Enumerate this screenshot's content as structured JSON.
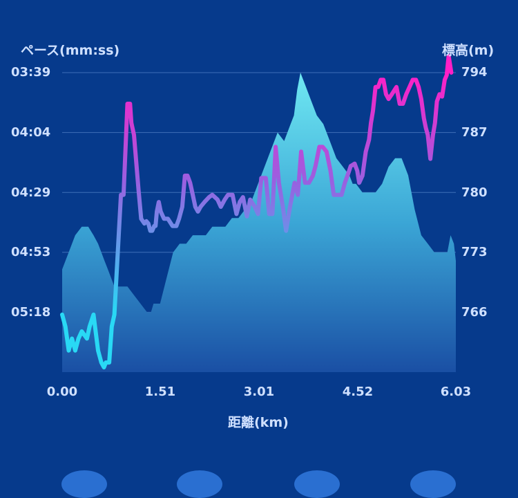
{
  "chart_data": {
    "type": "line",
    "xlabel": "距離(km)",
    "ylabel_left": "ペース(mm:ss)",
    "ylabel_right": "標高(m)",
    "x_ticks": [
      "0.00",
      "1.51",
      "3.01",
      "4.52",
      "6.03"
    ],
    "pace_ticks": [
      "03:39",
      "04:04",
      "04:29",
      "04:53",
      "05:18"
    ],
    "elevation_ticks": [
      "794",
      "787",
      "780",
      "773",
      "766"
    ],
    "x_range": [
      0,
      6.03
    ],
    "pace_range_seconds": [
      219,
      344
    ],
    "elevation_range": [
      759,
      794
    ],
    "grid": true,
    "series": [
      {
        "name": "ペース",
        "kind": "line",
        "axis": "left",
        "colors": [
          "#29d9f5",
          "#9a5fe0",
          "#ff1fc6"
        ],
        "x": [
          0.0,
          0.05,
          0.1,
          0.15,
          0.2,
          0.25,
          0.3,
          0.38,
          0.42,
          0.48,
          0.55,
          0.6,
          0.64,
          0.67,
          0.72,
          0.76,
          0.8,
          0.86,
          0.9,
          0.94,
          1.0,
          1.04,
          1.06,
          1.1,
          1.17,
          1.21,
          1.26,
          1.29,
          1.32,
          1.35,
          1.38,
          1.41,
          1.43,
          1.45,
          1.48,
          1.51,
          1.56,
          1.62,
          1.69,
          1.75,
          1.79,
          1.84,
          1.88,
          1.92,
          1.96,
          2.0,
          2.04,
          2.08,
          2.12,
          2.18,
          2.25,
          2.3,
          2.38,
          2.43,
          2.49,
          2.54,
          2.61,
          2.67,
          2.72,
          2.77,
          2.83,
          2.88,
          2.95,
          3.0,
          3.05,
          3.12,
          3.17,
          3.22,
          3.27,
          3.32,
          3.38,
          3.43,
          3.49,
          3.56,
          3.61,
          3.66,
          3.72,
          3.78,
          3.84,
          3.88,
          3.94,
          3.99,
          4.05,
          4.11,
          4.16,
          4.22,
          4.28,
          4.33,
          4.37,
          4.42,
          4.48,
          4.52,
          4.55,
          4.6,
          4.65,
          4.7,
          4.73,
          4.76,
          4.8,
          4.84,
          4.88,
          4.92,
          4.96,
          5.0,
          5.05,
          5.12,
          5.17,
          5.22,
          5.27,
          5.32,
          5.37,
          5.42,
          5.46,
          5.5,
          5.54,
          5.57,
          5.6,
          5.64,
          5.68,
          5.71,
          5.74,
          5.78,
          5.82,
          5.86,
          5.89,
          5.92,
          5.96,
          6.0,
          6.03
        ],
        "y_pace_seconds": [
          320,
          325,
          335,
          330,
          335,
          330,
          327,
          330,
          325,
          320,
          335,
          340,
          342,
          340,
          340,
          325,
          320,
          290,
          270,
          270,
          232,
          232,
          240,
          245,
          268,
          280,
          282,
          281,
          282,
          285,
          285,
          283,
          283,
          277,
          273,
          277,
          280,
          280,
          283,
          283,
          280,
          275,
          262,
          262,
          265,
          270,
          275,
          277,
          275,
          273,
          271,
          270,
          272,
          275,
          272,
          270,
          270,
          278,
          273,
          271,
          279,
          272,
          275,
          278,
          263,
          263,
          278,
          278,
          250,
          265,
          275,
          285,
          275,
          265,
          270,
          252,
          265,
          265,
          262,
          258,
          250,
          250,
          252,
          260,
          270,
          270,
          270,
          265,
          262,
          258,
          257,
          260,
          265,
          262,
          252,
          247,
          240,
          235,
          225,
          225,
          222,
          222,
          228,
          230,
          228,
          225,
          232,
          232,
          228,
          225,
          222,
          222,
          225,
          230,
          238,
          242,
          245,
          255,
          245,
          240,
          231,
          228,
          229,
          222,
          220,
          212,
          219
        ]
      },
      {
        "name": "標高",
        "kind": "area",
        "axis": "right",
        "colors": [
          "#6fe8f2",
          "#3ba6d6",
          "#1a4fa4"
        ],
        "x": [
          0.0,
          0.1,
          0.2,
          0.3,
          0.4,
          0.48,
          0.55,
          0.6,
          0.65,
          0.7,
          0.75,
          0.8,
          0.85,
          0.9,
          1.0,
          1.1,
          1.2,
          1.3,
          1.36,
          1.4,
          1.45,
          1.5,
          1.6,
          1.7,
          1.8,
          1.9,
          2.0,
          2.1,
          2.2,
          2.3,
          2.4,
          2.5,
          2.6,
          2.7,
          2.8,
          2.9,
          3.0,
          3.1,
          3.2,
          3.3,
          3.4,
          3.5,
          3.55,
          3.6,
          3.65,
          3.7,
          3.75,
          3.8,
          3.9,
          4.0,
          4.1,
          4.2,
          4.3,
          4.4,
          4.45,
          4.5,
          4.6,
          4.7,
          4.8,
          4.9,
          5.0,
          5.1,
          5.2,
          5.3,
          5.4,
          5.5,
          5.6,
          5.7,
          5.8,
          5.9,
          5.95,
          6.0,
          6.03
        ],
        "y": [
          771,
          773,
          775,
          776,
          776,
          775,
          774,
          773,
          772,
          771,
          770,
          769,
          769,
          769,
          769,
          768,
          767,
          766,
          766,
          767,
          767,
          767,
          770,
          773,
          774,
          774,
          775,
          775,
          775,
          776,
          776,
          776,
          777,
          777,
          778,
          779,
          781,
          783,
          785,
          787,
          786,
          788,
          789,
          792,
          794,
          793,
          792,
          791,
          789,
          788,
          786,
          784,
          783,
          782,
          781,
          781,
          780,
          780,
          780,
          781,
          783,
          784,
          784,
          782,
          778,
          775,
          774,
          773,
          773,
          773,
          775,
          774,
          772
        ]
      }
    ]
  }
}
